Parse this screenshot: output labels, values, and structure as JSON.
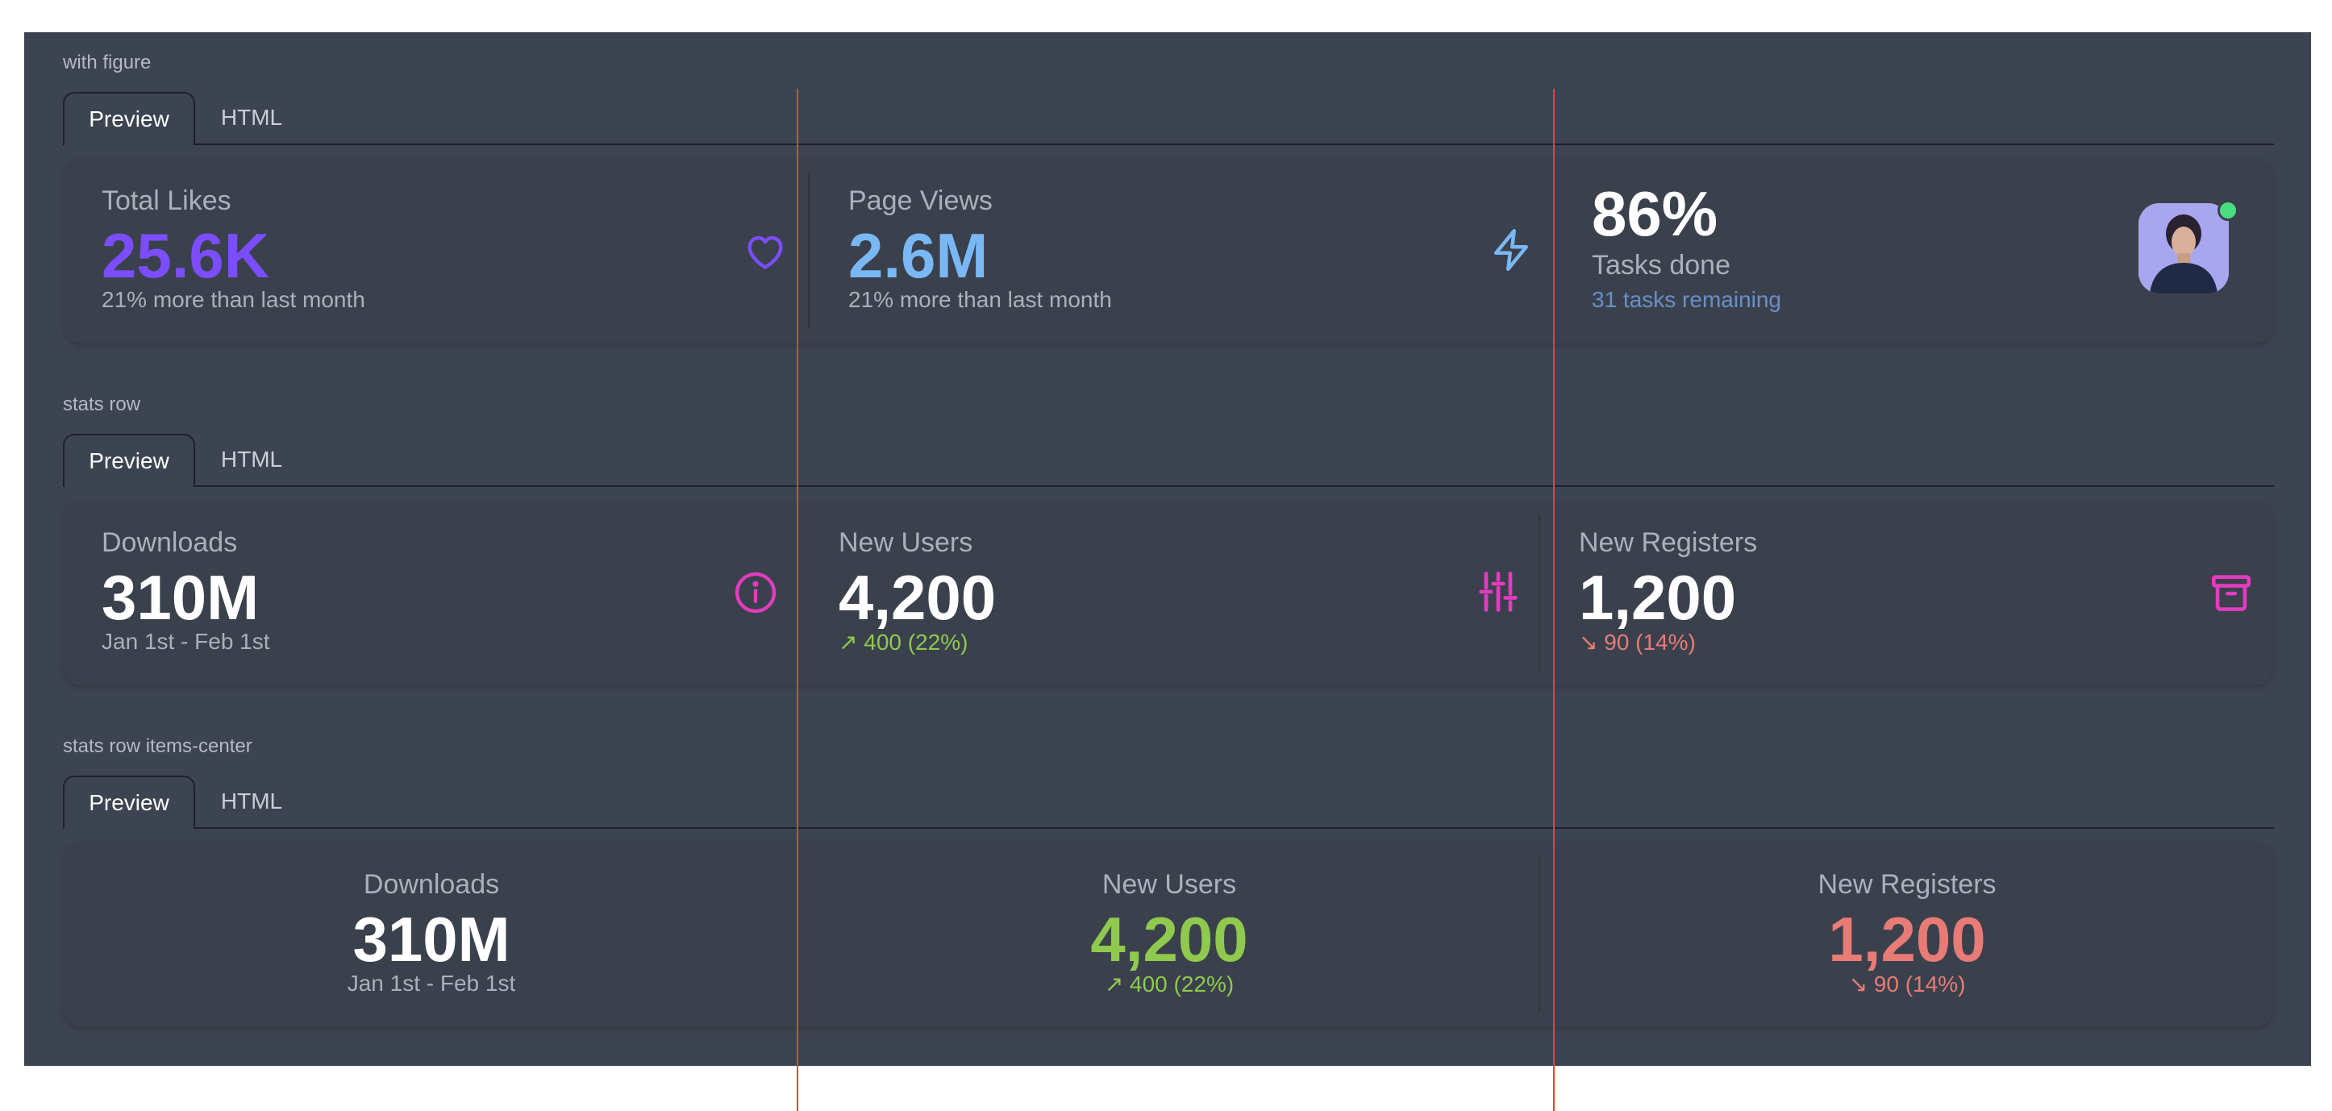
{
  "colors": {
    "likes_purple": "#7c4dff",
    "views_blue": "#7ab8f5",
    "magenta": "#e23cbf",
    "green": "#8fc94d",
    "red": "#e87b76",
    "remaining_blue": "#6a8fc8"
  },
  "sections": [
    {
      "label": "with figure",
      "tabs": [
        "Preview",
        "HTML"
      ],
      "stats": [
        {
          "title": "Total Likes",
          "value": "25.6K",
          "desc": "21% more than last month",
          "icon": "heart-icon"
        },
        {
          "title": "Page Views",
          "value": "2.6M",
          "desc": "21% more than last month",
          "icon": "lightning-icon"
        },
        {
          "value": "86%",
          "title": "Tasks done",
          "desc": "31 tasks remaining",
          "figure": "avatar"
        }
      ]
    },
    {
      "label": "stats row",
      "tabs": [
        "Preview",
        "HTML"
      ],
      "stats": [
        {
          "title": "Downloads",
          "value": "310M",
          "desc": "Jan 1st - Feb 1st",
          "icon": "info-icon"
        },
        {
          "title": "New Users",
          "value": "4,200",
          "desc": "↗︎ 400 (22%)",
          "icon": "sliders-icon"
        },
        {
          "title": "New Registers",
          "value": "1,200",
          "desc": "↘︎ 90 (14%)",
          "icon": "archive-icon"
        }
      ]
    },
    {
      "label": "stats row items-center",
      "tabs": [
        "Preview",
        "HTML"
      ],
      "stats": [
        {
          "title": "Downloads",
          "value": "310M",
          "desc": "Jan 1st - Feb 1st"
        },
        {
          "title": "New Users",
          "value": "4,200",
          "desc": "↗︎ 400 (22%)"
        },
        {
          "title": "New Registers",
          "value": "1,200",
          "desc": "↘︎ 90 (14%)"
        }
      ]
    }
  ]
}
